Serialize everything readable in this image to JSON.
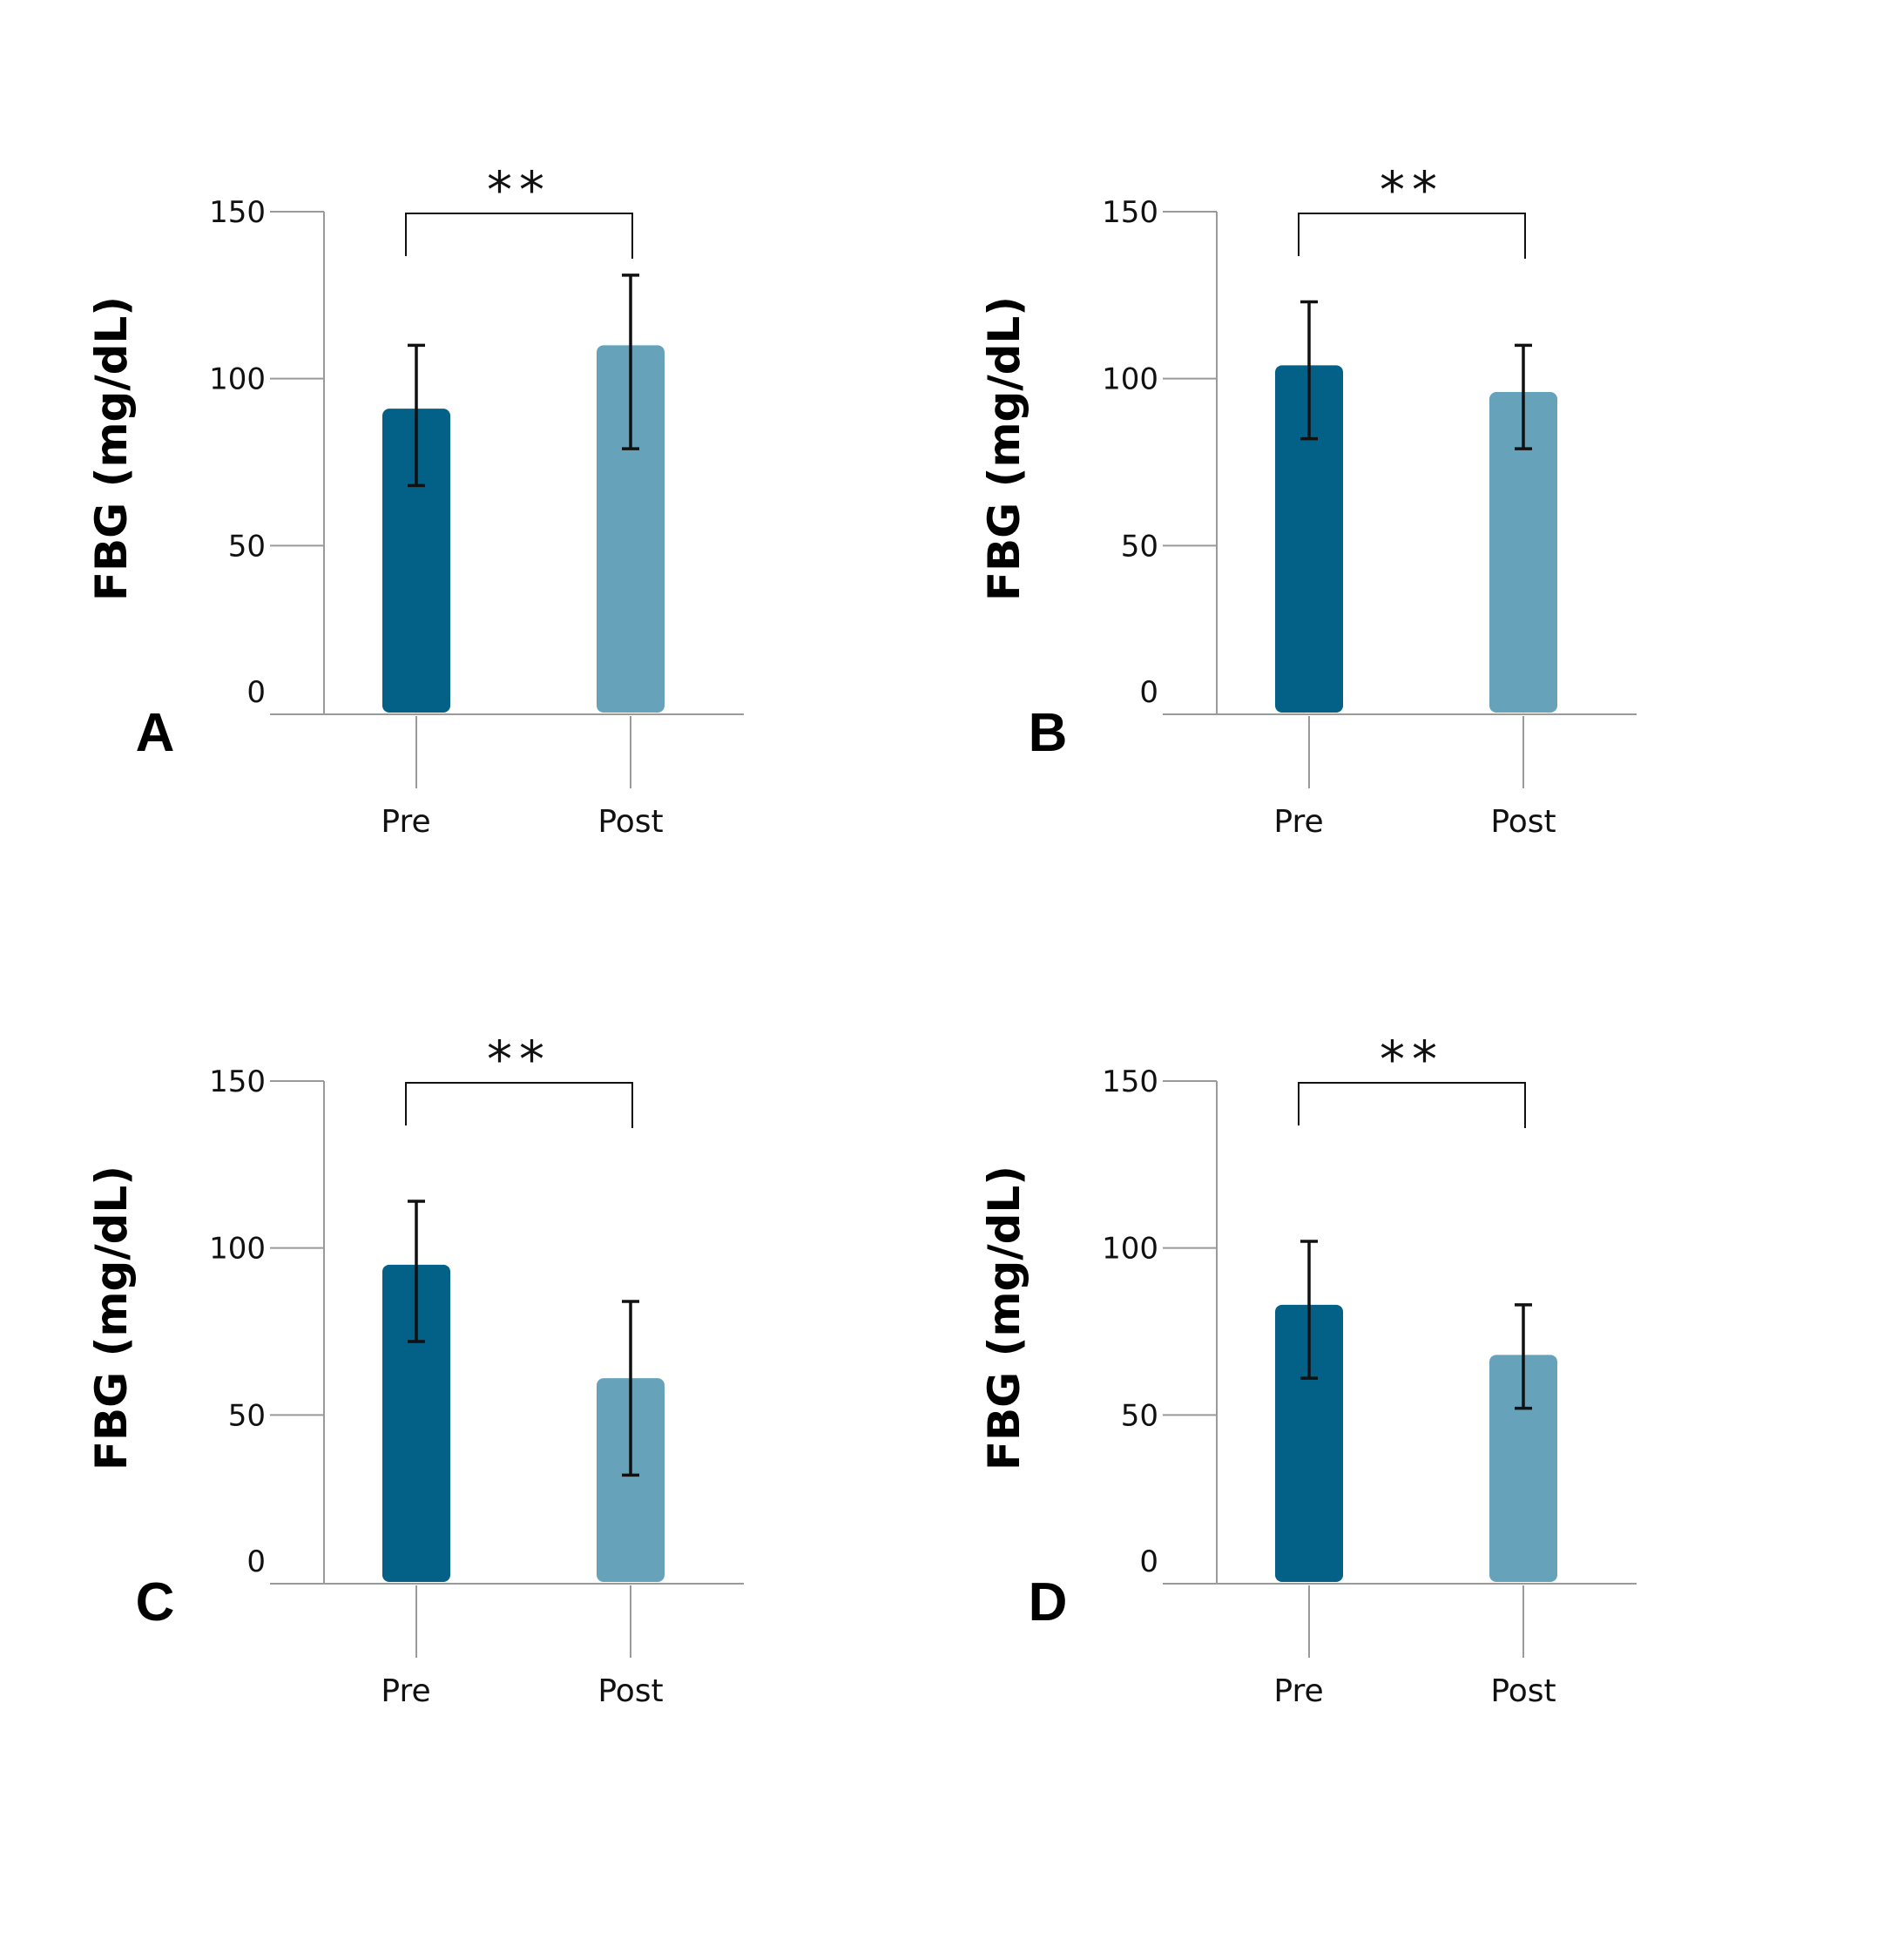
{
  "chart_data": [
    {
      "panel": "A",
      "type": "bar",
      "categories": [
        "Pre",
        "Post"
      ],
      "values": [
        91,
        110
      ],
      "error_low": [
        68,
        79
      ],
      "error_high": [
        110,
        131
      ],
      "ylabel": "FBG (mg/dL)",
      "yticks": [
        "0",
        "50",
        "100",
        "150"
      ],
      "ylim": [
        0,
        150
      ],
      "significance": "**",
      "colors": [
        "#036087",
        "#66a3bb"
      ]
    },
    {
      "panel": "B",
      "type": "bar",
      "categories": [
        "Pre",
        "Post"
      ],
      "values": [
        104,
        96
      ],
      "error_low": [
        82,
        79
      ],
      "error_high": [
        123,
        110
      ],
      "ylabel": "FBG (mg/dL)",
      "yticks": [
        "0",
        "50",
        "100",
        "150"
      ],
      "ylim": [
        0,
        150
      ],
      "significance": "**",
      "colors": [
        "#036087",
        "#66a3bb"
      ]
    },
    {
      "panel": "C",
      "type": "bar",
      "categories": [
        "Pre",
        "Post"
      ],
      "values": [
        95,
        61
      ],
      "error_low": [
        72,
        32
      ],
      "error_high": [
        114,
        84
      ],
      "ylabel": "FBG (mg/dL)",
      "yticks": [
        "0",
        "50",
        "100",
        "150"
      ],
      "ylim": [
        0,
        150
      ],
      "significance": "**",
      "colors": [
        "#036087",
        "#66a3bb"
      ]
    },
    {
      "panel": "D",
      "type": "bar",
      "categories": [
        "Pre",
        "Post"
      ],
      "values": [
        83,
        68
      ],
      "error_low": [
        61,
        52
      ],
      "error_high": [
        102,
        83
      ],
      "ylabel": "FBG (mg/dL)",
      "yticks": [
        "0",
        "50",
        "100",
        "150"
      ],
      "ylim": [
        0,
        150
      ],
      "significance": "**",
      "colors": [
        "#036087",
        "#66a3bb"
      ]
    }
  ]
}
